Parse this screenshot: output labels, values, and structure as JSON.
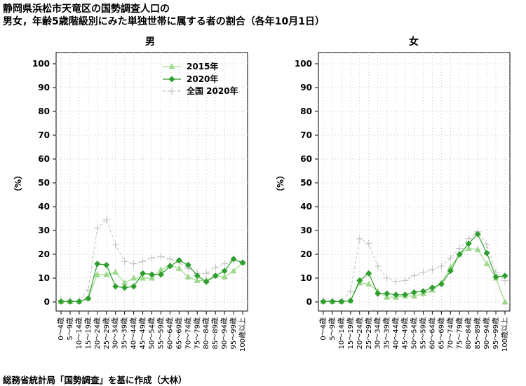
{
  "title_line1": "静岡県浜松市天竜区の国勢調査人口の",
  "title_line2": "男女，年齢5歳階級別にみた単独世帯に属する者の割合（各年10月1日）",
  "source": "総務省統計局「国勢調査」を基に作成（大林）",
  "colors": {
    "s2015": "#9ed88c",
    "s2020": "#2e9e2e",
    "national": "#c0c0c0",
    "grid": "#c8c8c8"
  },
  "chart_data": {
    "type": "line",
    "ylabel": "（%）",
    "ylim": [
      0,
      100
    ],
    "yticks": [
      0,
      10,
      20,
      30,
      40,
      50,
      60,
      70,
      80,
      90,
      100
    ],
    "categories": [
      "0～4歳",
      "5～9歳",
      "10～14歳",
      "15～19歳",
      "20～24歳",
      "25～29歳",
      "30～34歳",
      "35～39歳",
      "40～44歳",
      "45～49歳",
      "50～54歳",
      "55～59歳",
      "60～64歳",
      "65～69歳",
      "70～74歳",
      "75～79歳",
      "80～84歳",
      "85～89歳",
      "90～94歳",
      "95～99歳",
      "100歳以上"
    ],
    "legend": [
      "2015年",
      "2020年",
      "全国 2020年"
    ],
    "panels": [
      {
        "title": "男",
        "series": [
          {
            "name": "2015年",
            "values": [
              0.2,
              0.2,
              0.2,
              1.5,
              11.5,
              11.5,
              12.5,
              8.0,
              10.0,
              10.0,
              10.0,
              13.5,
              15.5,
              14.0,
              10.5,
              9.0,
              9.0,
              11.0,
              10.5,
              13.0,
              16.5
            ]
          },
          {
            "name": "2020年",
            "values": [
              0.2,
              0.2,
              0.2,
              1.5,
              16.0,
              15.5,
              6.5,
              6.0,
              6.5,
              12.0,
              11.5,
              11.5,
              15.0,
              17.5,
              15.5,
              11.0,
              8.5,
              11.0,
              13.0,
              18.0,
              16.5
            ]
          },
          {
            "name": "全国 2020年",
            "values": [
              0.5,
              0.5,
              0.5,
              5.0,
              31.0,
              34.5,
              24.0,
              17.0,
              16.0,
              17.0,
              18.5,
              19.0,
              18.0,
              16.5,
              14.0,
              12.0,
              12.0,
              14.5,
              16.0,
              17.5,
              16.5
            ]
          }
        ]
      },
      {
        "title": "女",
        "series": [
          {
            "name": "2015年",
            "values": [
              0.2,
              0.2,
              0.2,
              0.5,
              8.0,
              7.5,
              4.5,
              2.0,
              2.0,
              2.5,
              2.5,
              3.5,
              5.0,
              8.0,
              14.5,
              20.0,
              22.5,
              22.0,
              16.0,
              10.0,
              0.0
            ]
          },
          {
            "name": "2020年",
            "values": [
              0.2,
              0.2,
              0.2,
              0.5,
              9.0,
              12.0,
              3.5,
              3.5,
              3.0,
              3.0,
              4.0,
              4.5,
              6.0,
              7.5,
              13.0,
              20.0,
              24.5,
              28.5,
              20.5,
              10.5,
              11.0
            ]
          },
          {
            "name": "全国 2020年",
            "values": [
              0.5,
              0.5,
              0.5,
              4.5,
              26.5,
              24.5,
              15.0,
              10.0,
              8.5,
              9.0,
              11.0,
              12.5,
              13.5,
              15.0,
              18.5,
              22.5,
              26.5,
              29.5,
              24.0,
              12.5,
              9.0
            ]
          }
        ]
      }
    ]
  }
}
